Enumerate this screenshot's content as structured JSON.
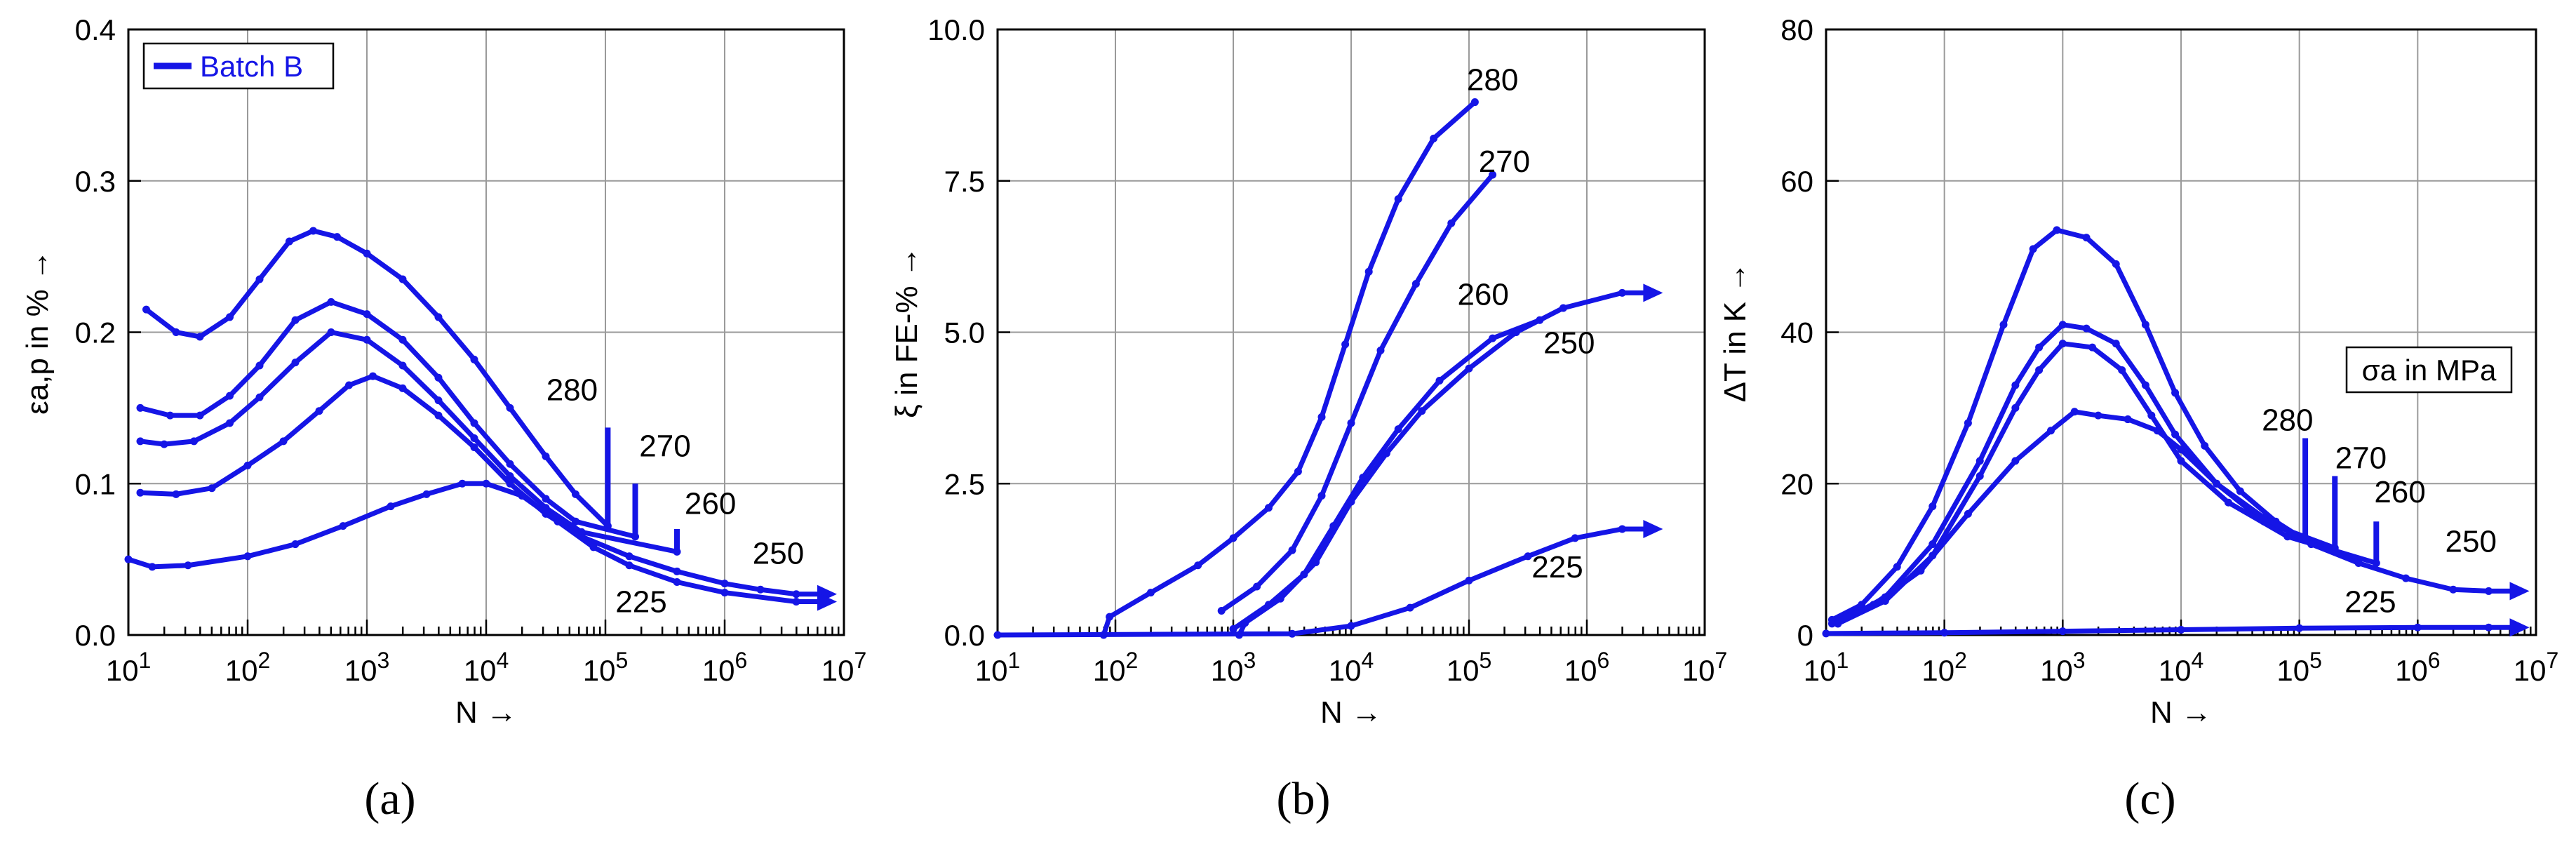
{
  "chart_data": [
    {
      "type": "line",
      "panel_label": "(a)",
      "title": "",
      "xlabel": "N →",
      "ylabel": "εa,p in % →",
      "xscale": "log",
      "xlim": [
        1,
        7
      ],
      "ylim": [
        0,
        0.4
      ],
      "x_ticks": [
        1,
        2,
        3,
        4,
        5,
        6,
        7
      ],
      "x_tick_base": "10",
      "y_ticks": [
        "0.0",
        "0.1",
        "0.2",
        "0.3",
        "0.4"
      ],
      "grid": true,
      "legend": {
        "position": "top-left",
        "entries": [
          "Batch B"
        ]
      },
      "series": [
        {
          "name": "280",
          "runout": false,
          "points": [
            [
              1.15,
              0.215
            ],
            [
              1.4,
              0.2
            ],
            [
              1.6,
              0.197
            ],
            [
              1.85,
              0.21
            ],
            [
              2.1,
              0.235
            ],
            [
              2.35,
              0.26
            ],
            [
              2.55,
              0.267
            ],
            [
              2.75,
              0.263
            ],
            [
              3.0,
              0.252
            ],
            [
              3.3,
              0.235
            ],
            [
              3.6,
              0.21
            ],
            [
              3.9,
              0.182
            ],
            [
              4.2,
              0.15
            ],
            [
              4.5,
              0.118
            ],
            [
              4.75,
              0.093
            ],
            [
              5.02,
              0.072
            ]
          ],
          "fail_at": [
            5.02,
            0.137
          ]
        },
        {
          "name": "270",
          "runout": false,
          "points": [
            [
              1.1,
              0.15
            ],
            [
              1.35,
              0.145
            ],
            [
              1.6,
              0.145
            ],
            [
              1.85,
              0.158
            ],
            [
              2.1,
              0.178
            ],
            [
              2.4,
              0.208
            ],
            [
              2.7,
              0.22
            ],
            [
              3.0,
              0.212
            ],
            [
              3.3,
              0.195
            ],
            [
              3.6,
              0.17
            ],
            [
              3.9,
              0.14
            ],
            [
              4.2,
              0.113
            ],
            [
              4.5,
              0.09
            ],
            [
              4.75,
              0.075
            ],
            [
              5.25,
              0.065
            ]
          ],
          "fail_at": [
            5.25,
            0.1
          ]
        },
        {
          "name": "260",
          "runout": false,
          "points": [
            [
              1.1,
              0.128
            ],
            [
              1.3,
              0.126
            ],
            [
              1.55,
              0.128
            ],
            [
              1.85,
              0.14
            ],
            [
              2.1,
              0.157
            ],
            [
              2.4,
              0.18
            ],
            [
              2.7,
              0.2
            ],
            [
              3.0,
              0.195
            ],
            [
              3.3,
              0.178
            ],
            [
              3.6,
              0.155
            ],
            [
              3.9,
              0.13
            ],
            [
              4.2,
              0.105
            ],
            [
              4.5,
              0.084
            ],
            [
              4.8,
              0.068
            ],
            [
              5.6,
              0.055
            ]
          ],
          "fail_at": [
            5.6,
            0.07
          ]
        },
        {
          "name": "250",
          "runout": true,
          "points": [
            [
              1.1,
              0.094
            ],
            [
              1.4,
              0.093
            ],
            [
              1.7,
              0.097
            ],
            [
              2.0,
              0.112
            ],
            [
              2.3,
              0.128
            ],
            [
              2.6,
              0.148
            ],
            [
              2.85,
              0.165
            ],
            [
              3.05,
              0.171
            ],
            [
              3.3,
              0.163
            ],
            [
              3.6,
              0.145
            ],
            [
              3.9,
              0.124
            ],
            [
              4.2,
              0.1
            ],
            [
              4.5,
              0.08
            ],
            [
              4.8,
              0.065
            ],
            [
              5.2,
              0.052
            ],
            [
              5.6,
              0.042
            ],
            [
              6.0,
              0.034
            ],
            [
              6.3,
              0.03
            ],
            [
              6.6,
              0.027
            ]
          ]
        },
        {
          "name": "225",
          "runout": true,
          "points": [
            [
              1.0,
              0.05
            ],
            [
              1.2,
              0.045
            ],
            [
              1.5,
              0.046
            ],
            [
              2.0,
              0.052
            ],
            [
              2.4,
              0.06
            ],
            [
              2.8,
              0.072
            ],
            [
              3.2,
              0.085
            ],
            [
              3.5,
              0.093
            ],
            [
              3.8,
              0.1
            ],
            [
              4.0,
              0.1
            ],
            [
              4.3,
              0.092
            ],
            [
              4.6,
              0.075
            ],
            [
              4.9,
              0.058
            ],
            [
              5.2,
              0.046
            ],
            [
              5.6,
              0.035
            ],
            [
              6.0,
              0.028
            ],
            [
              6.6,
              0.022
            ]
          ]
        }
      ],
      "annotations": [
        {
          "text": "280",
          "at": [
            4.72,
            0.155
          ]
        },
        {
          "text": "270",
          "at": [
            5.5,
            0.118
          ]
        },
        {
          "text": "260",
          "at": [
            5.88,
            0.08
          ]
        },
        {
          "text": "250",
          "at": [
            6.45,
            0.047
          ]
        },
        {
          "text": "225",
          "at": [
            5.3,
            0.015
          ]
        }
      ]
    },
    {
      "type": "line",
      "panel_label": "(b)",
      "title": "",
      "xlabel": "N →",
      "ylabel": "ξ in FE-% →",
      "xscale": "log",
      "xlim": [
        1,
        7
      ],
      "ylim": [
        0,
        10
      ],
      "x_ticks": [
        1,
        2,
        3,
        4,
        5,
        6,
        7
      ],
      "x_tick_base": "10",
      "y_ticks": [
        "0.0",
        "2.5",
        "5.0",
        "7.5",
        "10.0"
      ],
      "grid": true,
      "series": [
        {
          "name": "280",
          "runout": false,
          "points": [
            [
              1.9,
              0.0
            ],
            [
              1.95,
              0.3
            ],
            [
              2.3,
              0.7
            ],
            [
              2.7,
              1.15
            ],
            [
              3.0,
              1.6
            ],
            [
              3.3,
              2.1
            ],
            [
              3.55,
              2.7
            ],
            [
              3.75,
              3.6
            ],
            [
              3.95,
              4.8
            ],
            [
              4.15,
              6.0
            ],
            [
              4.4,
              7.2
            ],
            [
              4.7,
              8.2
            ],
            [
              5.05,
              8.8
            ]
          ]
        },
        {
          "name": "270",
          "runout": false,
          "points": [
            [
              2.9,
              0.4
            ],
            [
              3.2,
              0.8
            ],
            [
              3.5,
              1.4
            ],
            [
              3.75,
              2.3
            ],
            [
              4.0,
              3.5
            ],
            [
              4.25,
              4.7
            ],
            [
              4.55,
              5.8
            ],
            [
              4.85,
              6.8
            ],
            [
              5.2,
              7.6
            ]
          ]
        },
        {
          "name": "260",
          "runout": false,
          "points": [
            [
              3.0,
              0.1
            ],
            [
              3.3,
              0.5
            ],
            [
              3.6,
              1.0
            ],
            [
              3.85,
              1.8
            ],
            [
              4.1,
              2.6
            ],
            [
              4.4,
              3.4
            ],
            [
              4.75,
              4.2
            ],
            [
              5.2,
              4.9
            ],
            [
              5.6,
              5.2
            ]
          ]
        },
        {
          "name": "250",
          "runout": true,
          "points": [
            [
              3.05,
              0.0
            ],
            [
              3.1,
              0.2
            ],
            [
              3.4,
              0.6
            ],
            [
              3.7,
              1.2
            ],
            [
              4.0,
              2.2
            ],
            [
              4.3,
              3.0
            ],
            [
              4.6,
              3.7
            ],
            [
              5.0,
              4.4
            ],
            [
              5.4,
              5.0
            ],
            [
              5.8,
              5.4
            ],
            [
              6.3,
              5.65
            ]
          ]
        },
        {
          "name": "225",
          "runout": true,
          "points": [
            [
              1.0,
              0.0
            ],
            [
              3.5,
              0.02
            ],
            [
              4.0,
              0.15
            ],
            [
              4.5,
              0.45
            ],
            [
              5.0,
              0.9
            ],
            [
              5.5,
              1.3
            ],
            [
              5.9,
              1.6
            ],
            [
              6.3,
              1.75
            ]
          ]
        }
      ],
      "annotations": [
        {
          "text": "280",
          "at": [
            5.2,
            9.0
          ]
        },
        {
          "text": "270",
          "at": [
            5.3,
            7.65
          ]
        },
        {
          "text": "260",
          "at": [
            5.12,
            5.45
          ]
        },
        {
          "text": "250",
          "at": [
            5.85,
            4.65
          ]
        },
        {
          "text": "225",
          "at": [
            5.75,
            0.95
          ]
        }
      ]
    },
    {
      "type": "line",
      "panel_label": "(c)",
      "title": "",
      "xlabel": "N →",
      "ylabel": "ΔT in K →",
      "xscale": "log",
      "xlim": [
        1,
        7
      ],
      "ylim": [
        0,
        80
      ],
      "x_ticks": [
        1,
        2,
        3,
        4,
        5,
        6,
        7
      ],
      "x_tick_base": "10",
      "y_ticks": [
        "0",
        "20",
        "40",
        "60",
        "80"
      ],
      "grid": true,
      "legend": {
        "position": "right",
        "entries": [
          "σa in MPa"
        ]
      },
      "series": [
        {
          "name": "280",
          "runout": false,
          "points": [
            [
              1.05,
              2.0
            ],
            [
              1.3,
              4.0
            ],
            [
              1.6,
              9.0
            ],
            [
              1.9,
              17.0
            ],
            [
              2.2,
              28.0
            ],
            [
              2.5,
              41.0
            ],
            [
              2.75,
              51.0
            ],
            [
              2.95,
              53.5
            ],
            [
              3.2,
              52.5
            ],
            [
              3.45,
              49.0
            ],
            [
              3.7,
              41.0
            ],
            [
              3.95,
              32.0
            ],
            [
              4.2,
              25.0
            ],
            [
              4.5,
              19.0
            ],
            [
              4.8,
              15.0
            ],
            [
              5.05,
              12.5
            ]
          ],
          "fail_at": [
            5.05,
            26.0
          ]
        },
        {
          "name": "270",
          "runout": false,
          "points": [
            [
              1.1,
              1.5
            ],
            [
              1.5,
              5.0
            ],
            [
              1.9,
              12.0
            ],
            [
              2.3,
              23.0
            ],
            [
              2.6,
              33.0
            ],
            [
              2.8,
              38.0
            ],
            [
              3.0,
              41.0
            ],
            [
              3.2,
              40.5
            ],
            [
              3.45,
              38.5
            ],
            [
              3.7,
              33.0
            ],
            [
              3.95,
              26.5
            ],
            [
              4.3,
              20.0
            ],
            [
              4.7,
              15.0
            ],
            [
              5.3,
              11.5
            ]
          ],
          "fail_at": [
            5.3,
            21.0
          ]
        },
        {
          "name": "260",
          "runout": false,
          "points": [
            [
              1.1,
              1.5
            ],
            [
              1.5,
              4.5
            ],
            [
              1.9,
              10.5
            ],
            [
              2.3,
              21.0
            ],
            [
              2.6,
              30.0
            ],
            [
              2.8,
              35.0
            ],
            [
              3.0,
              38.5
            ],
            [
              3.25,
              38.0
            ],
            [
              3.5,
              35.0
            ],
            [
              3.75,
              29.0
            ],
            [
              4.0,
              23.0
            ],
            [
              4.4,
              17.5
            ],
            [
              4.9,
              13.0
            ],
            [
              5.65,
              9.5
            ]
          ],
          "fail_at": [
            5.65,
            15.0
          ]
        },
        {
          "name": "250",
          "runout": true,
          "points": [
            [
              1.05,
              1.5
            ],
            [
              1.4,
              4.0
            ],
            [
              1.8,
              8.5
            ],
            [
              2.2,
              16.0
            ],
            [
              2.6,
              23.0
            ],
            [
              2.9,
              27.0
            ],
            [
              3.1,
              29.5
            ],
            [
              3.3,
              29.0
            ],
            [
              3.55,
              28.5
            ],
            [
              3.8,
              27.0
            ],
            [
              4.0,
              24.5
            ],
            [
              4.3,
              20.0
            ],
            [
              4.7,
              15.5
            ],
            [
              5.1,
              12.0
            ],
            [
              5.5,
              9.5
            ],
            [
              5.9,
              7.5
            ],
            [
              6.3,
              6.0
            ],
            [
              6.6,
              5.8
            ]
          ]
        },
        {
          "name": "225",
          "runout": true,
          "points": [
            [
              1.0,
              0.2
            ],
            [
              2.0,
              0.3
            ],
            [
              3.0,
              0.5
            ],
            [
              4.0,
              0.7
            ],
            [
              5.0,
              0.9
            ],
            [
              6.0,
              1.0
            ],
            [
              6.6,
              1.0
            ]
          ]
        }
      ],
      "annotations": [
        {
          "text": "280",
          "at": [
            4.9,
            27.0
          ]
        },
        {
          "text": "270",
          "at": [
            5.52,
            22.0
          ]
        },
        {
          "text": "260",
          "at": [
            5.85,
            17.5
          ]
        },
        {
          "text": "250",
          "at": [
            6.45,
            11.0
          ]
        },
        {
          "text": "225",
          "at": [
            5.6,
            3.0
          ]
        }
      ]
    }
  ]
}
